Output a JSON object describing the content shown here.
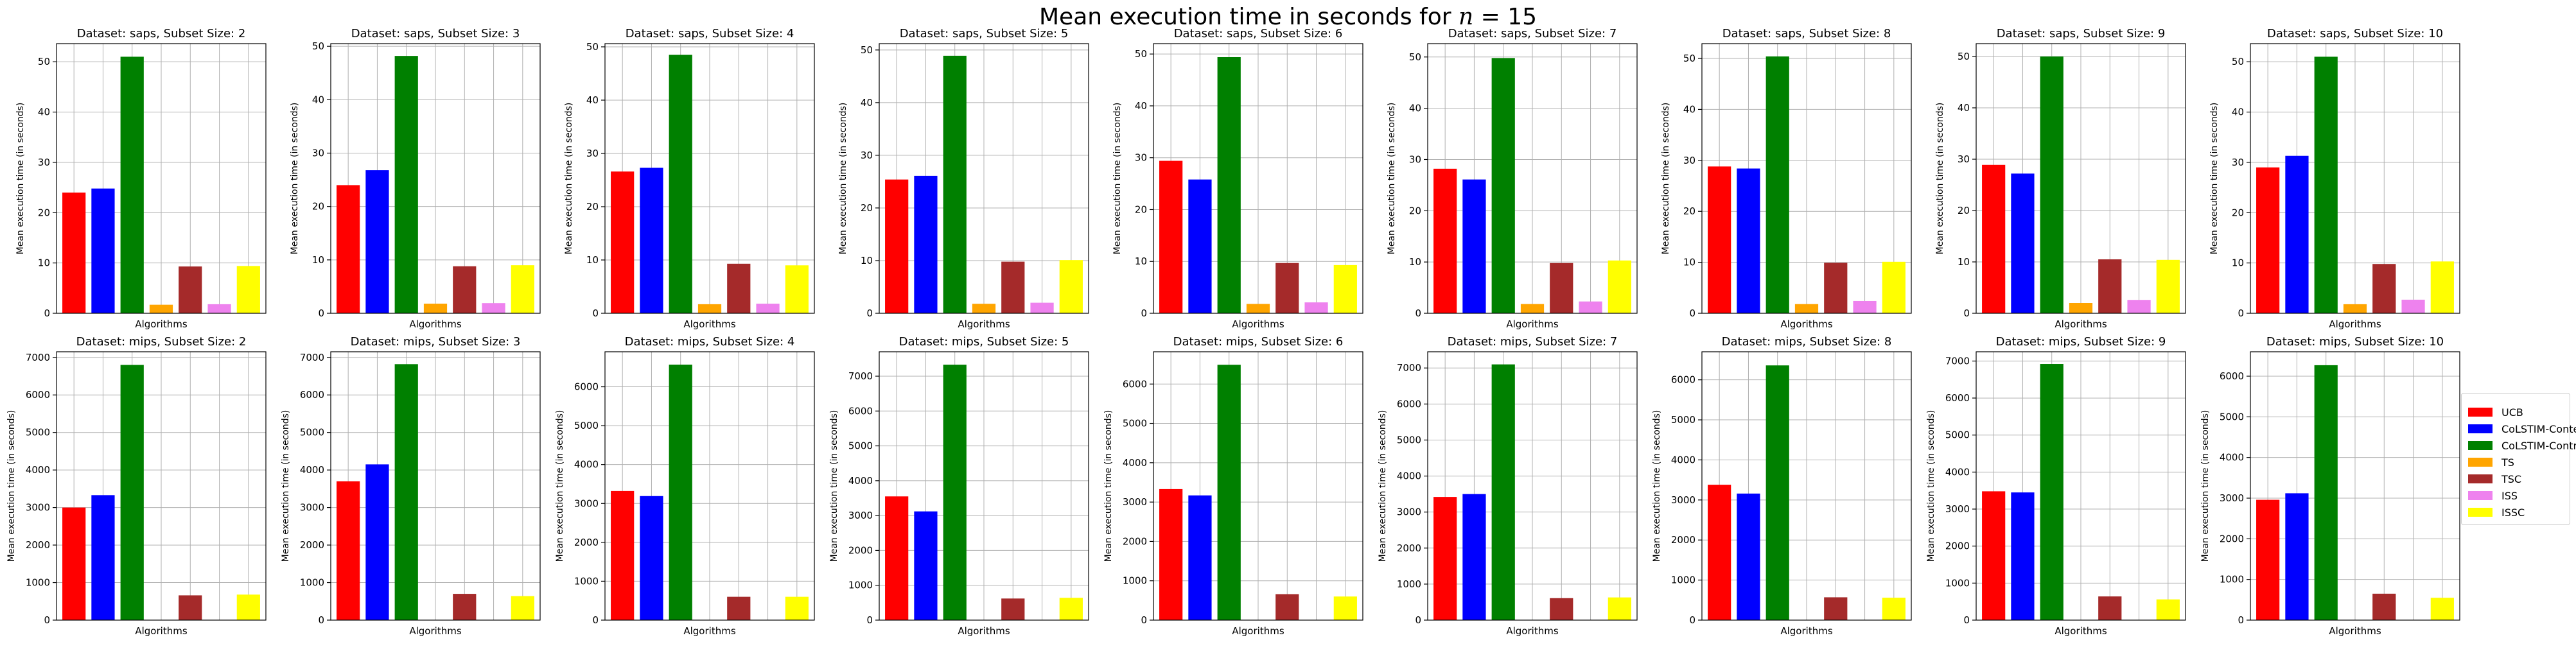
{
  "figure": {
    "title_prefix": "Mean execution time in seconds for ",
    "title_var": "n",
    "title_suffix": " = 15"
  },
  "legend": {
    "placement": "right",
    "items": [
      {
        "label": "UCB",
        "color": "#ff0000"
      },
      {
        "label": "CoLSTIM-Context",
        "color": "#0000ff"
      },
      {
        "label": "CoLSTIM-Contrast",
        "color": "#008000"
      },
      {
        "label": "TS",
        "color": "#ffa500"
      },
      {
        "label": "TSC",
        "color": "#a52a2a"
      },
      {
        "label": "ISS",
        "color": "#ee82ee"
      },
      {
        "label": "ISSC",
        "color": "#ffff00"
      }
    ]
  },
  "chart_data": [
    {
      "type": "bar",
      "title": "Dataset: saps, Subset Size: 2",
      "xlabel": "Algorithms",
      "ylabel": "Mean execution time (in seconds)",
      "ylim": [
        0,
        53.6
      ],
      "yticks": [
        0,
        10,
        20,
        30,
        40,
        50
      ],
      "grid": true,
      "categories": [
        "UCB",
        "CoLSTIM-Context",
        "CoLSTIM-Contrast",
        "TS",
        "TSC",
        "ISS",
        "ISSC"
      ],
      "values": [
        24.0,
        24.8,
        51.0,
        1.7,
        9.3,
        1.8,
        9.4
      ]
    },
    {
      "type": "bar",
      "title": "Dataset: saps, Subset Size: 3",
      "xlabel": "Algorithms",
      "ylabel": "Mean execution time (in seconds)",
      "ylim": [
        0,
        50.5
      ],
      "yticks": [
        0,
        10,
        20,
        30,
        40,
        50
      ],
      "grid": true,
      "categories": [
        "UCB",
        "CoLSTIM-Context",
        "CoLSTIM-Contrast",
        "TS",
        "TSC",
        "ISS",
        "ISSC"
      ],
      "values": [
        24.0,
        26.8,
        48.2,
        1.8,
        8.8,
        1.9,
        9.0
      ]
    },
    {
      "type": "bar",
      "title": "Dataset: saps, Subset Size: 4",
      "xlabel": "Algorithms",
      "ylabel": "Mean execution time (in seconds)",
      "ylim": [
        0,
        50.6
      ],
      "yticks": [
        0,
        10,
        20,
        30,
        40,
        50
      ],
      "grid": true,
      "categories": [
        "UCB",
        "CoLSTIM-Context",
        "CoLSTIM-Contrast",
        "TS",
        "TSC",
        "ISS",
        "ISSC"
      ],
      "values": [
        26.6,
        27.3,
        48.5,
        1.7,
        9.3,
        1.8,
        9.0
      ]
    },
    {
      "type": "bar",
      "title": "Dataset: saps, Subset Size: 5",
      "xlabel": "Algorithms",
      "ylabel": "Mean execution time (in seconds)",
      "ylim": [
        0,
        51.2
      ],
      "yticks": [
        0,
        10,
        20,
        30,
        40,
        50
      ],
      "grid": true,
      "categories": [
        "UCB",
        "CoLSTIM-Context",
        "CoLSTIM-Contrast",
        "TS",
        "TSC",
        "ISS",
        "ISSC"
      ],
      "values": [
        25.4,
        26.1,
        48.9,
        1.8,
        9.8,
        2.0,
        10.1
      ]
    },
    {
      "type": "bar",
      "title": "Dataset: saps, Subset Size: 6",
      "xlabel": "Algorithms",
      "ylabel": "Mean execution time (in seconds)",
      "ylim": [
        0,
        52.0
      ],
      "yticks": [
        0,
        10,
        20,
        30,
        40,
        50
      ],
      "grid": true,
      "categories": [
        "UCB",
        "CoLSTIM-Context",
        "CoLSTIM-Contrast",
        "TS",
        "TSC",
        "ISS",
        "ISSC"
      ],
      "values": [
        29.4,
        25.8,
        49.4,
        1.8,
        9.7,
        2.1,
        9.3
      ]
    },
    {
      "type": "bar",
      "title": "Dataset: saps, Subset Size: 7",
      "xlabel": "Algorithms",
      "ylabel": "Mean execution time (in seconds)",
      "ylim": [
        0,
        52.6
      ],
      "yticks": [
        0,
        10,
        20,
        30,
        40,
        50
      ],
      "grid": true,
      "categories": [
        "UCB",
        "CoLSTIM-Context",
        "CoLSTIM-Contrast",
        "TS",
        "TSC",
        "ISS",
        "ISSC"
      ],
      "values": [
        28.2,
        26.1,
        49.8,
        1.8,
        9.8,
        2.3,
        10.3
      ]
    },
    {
      "type": "bar",
      "title": "Dataset: saps, Subset Size: 8",
      "xlabel": "Algorithms",
      "ylabel": "Mean execution time (in seconds)",
      "ylim": [
        0,
        52.9
      ],
      "yticks": [
        0,
        10,
        20,
        30,
        40,
        50
      ],
      "grid": true,
      "categories": [
        "UCB",
        "CoLSTIM-Context",
        "CoLSTIM-Contrast",
        "TS",
        "TSC",
        "ISS",
        "ISSC"
      ],
      "values": [
        28.8,
        28.4,
        50.4,
        1.8,
        9.9,
        2.4,
        10.1
      ]
    },
    {
      "type": "bar",
      "title": "Dataset: saps, Subset Size: 9",
      "xlabel": "Algorithms",
      "ylabel": "Mean execution time (in seconds)",
      "ylim": [
        0,
        52.5
      ],
      "yticks": [
        0,
        10,
        20,
        30,
        40,
        50
      ],
      "grid": true,
      "categories": [
        "UCB",
        "CoLSTIM-Context",
        "CoLSTIM-Contrast",
        "TS",
        "TSC",
        "ISS",
        "ISSC"
      ],
      "values": [
        28.9,
        27.2,
        50.0,
        2.0,
        10.5,
        2.6,
        10.4
      ]
    },
    {
      "type": "bar",
      "title": "Dataset: saps, Subset Size: 10",
      "xlabel": "Algorithms",
      "ylabel": "Mean execution time (in seconds)",
      "ylim": [
        0,
        53.6
      ],
      "yticks": [
        0,
        10,
        20,
        30,
        40,
        50
      ],
      "grid": true,
      "categories": [
        "UCB",
        "CoLSTIM-Context",
        "CoLSTIM-Contrast",
        "TS",
        "TSC",
        "ISS",
        "ISSC"
      ],
      "values": [
        29.0,
        31.3,
        51.0,
        1.8,
        9.8,
        2.7,
        10.3
      ]
    },
    {
      "type": "bar",
      "title": "Dataset: mips, Subset Size: 2",
      "xlabel": "Algorithms",
      "ylabel": "Mean execution time (in seconds)",
      "ylim": [
        0,
        7150
      ],
      "yticks": [
        0,
        1000,
        2000,
        3000,
        4000,
        5000,
        6000,
        7000
      ],
      "grid": true,
      "categories": [
        "UCB",
        "CoLSTIM-Context",
        "CoLSTIM-Contrast",
        "TS",
        "TSC",
        "ISS",
        "ISSC"
      ],
      "values": [
        3000,
        3330,
        6800,
        0,
        660,
        0,
        680
      ]
    },
    {
      "type": "bar",
      "title": "Dataset: mips, Subset Size: 3",
      "xlabel": "Algorithms",
      "ylabel": "Mean execution time (in seconds)",
      "ylim": [
        0,
        7150
      ],
      "yticks": [
        0,
        1000,
        2000,
        3000,
        4000,
        5000,
        6000,
        7000
      ],
      "grid": true,
      "categories": [
        "UCB",
        "CoLSTIM-Context",
        "CoLSTIM-Contrast",
        "TS",
        "TSC",
        "ISS",
        "ISSC"
      ],
      "values": [
        3700,
        4150,
        6820,
        0,
        700,
        0,
        640
      ]
    },
    {
      "type": "bar",
      "title": "Dataset: mips, Subset Size: 4",
      "xlabel": "Algorithms",
      "ylabel": "Mean execution time (in seconds)",
      "ylim": [
        0,
        6900
      ],
      "yticks": [
        0,
        1000,
        2000,
        3000,
        4000,
        5000,
        6000
      ],
      "grid": true,
      "categories": [
        "UCB",
        "CoLSTIM-Context",
        "CoLSTIM-Contrast",
        "TS",
        "TSC",
        "ISS",
        "ISSC"
      ],
      "values": [
        3320,
        3190,
        6570,
        0,
        600,
        0,
        600
      ]
    },
    {
      "type": "bar",
      "title": "Dataset: mips, Subset Size: 5",
      "xlabel": "Algorithms",
      "ylabel": "Mean execution time (in seconds)",
      "ylim": [
        0,
        7700
      ],
      "yticks": [
        0,
        1000,
        2000,
        3000,
        4000,
        5000,
        6000,
        7000
      ],
      "grid": true,
      "categories": [
        "UCB",
        "CoLSTIM-Context",
        "CoLSTIM-Contrast",
        "TS",
        "TSC",
        "ISS",
        "ISSC"
      ],
      "values": [
        3550,
        3120,
        7330,
        0,
        620,
        0,
        640
      ]
    },
    {
      "type": "bar",
      "title": "Dataset: mips, Subset Size: 6",
      "xlabel": "Algorithms",
      "ylabel": "Mean execution time (in seconds)",
      "ylim": [
        0,
        6820
      ],
      "yticks": [
        0,
        1000,
        2000,
        3000,
        4000,
        5000,
        6000
      ],
      "grid": true,
      "categories": [
        "UCB",
        "CoLSTIM-Context",
        "CoLSTIM-Contrast",
        "TS",
        "TSC",
        "ISS",
        "ISSC"
      ],
      "values": [
        3330,
        3170,
        6490,
        0,
        660,
        0,
        600
      ]
    },
    {
      "type": "bar",
      "title": "Dataset: mips, Subset Size: 7",
      "xlabel": "Algorithms",
      "ylabel": "Mean execution time (in seconds)",
      "ylim": [
        0,
        7450
      ],
      "yticks": [
        0,
        1000,
        2000,
        3000,
        4000,
        5000,
        6000,
        7000
      ],
      "grid": true,
      "categories": [
        "UCB",
        "CoLSTIM-Context",
        "CoLSTIM-Contrast",
        "TS",
        "TSC",
        "ISS",
        "ISSC"
      ],
      "values": [
        3420,
        3500,
        7100,
        0,
        610,
        0,
        630
      ]
    },
    {
      "type": "bar",
      "title": "Dataset: mips, Subset Size: 8",
      "xlabel": "Algorithms",
      "ylabel": "Mean execution time (in seconds)",
      "ylim": [
        0,
        6700
      ],
      "yticks": [
        0,
        1000,
        2000,
        3000,
        4000,
        5000,
        6000
      ],
      "grid": true,
      "categories": [
        "UCB",
        "CoLSTIM-Context",
        "CoLSTIM-Contrast",
        "TS",
        "TSC",
        "ISS",
        "ISSC"
      ],
      "values": [
        3380,
        3160,
        6360,
        0,
        570,
        0,
        560
      ]
    },
    {
      "type": "bar",
      "title": "Dataset: mips, Subset Size: 9",
      "xlabel": "Algorithms",
      "ylabel": "Mean execution time (in seconds)",
      "ylim": [
        0,
        7250
      ],
      "yticks": [
        0,
        1000,
        2000,
        3000,
        4000,
        5000,
        6000,
        7000
      ],
      "grid": true,
      "categories": [
        "UCB",
        "CoLSTIM-Context",
        "CoLSTIM-Contrast",
        "TS",
        "TSC",
        "ISS",
        "ISSC"
      ],
      "values": [
        3480,
        3450,
        6920,
        0,
        640,
        0,
        560
      ]
    },
    {
      "type": "bar",
      "title": "Dataset: mips, Subset Size: 10",
      "xlabel": "Algorithms",
      "ylabel": "Mean execution time (in seconds)",
      "ylim": [
        0,
        6600
      ],
      "yticks": [
        0,
        1000,
        2000,
        3000,
        4000,
        5000,
        6000
      ],
      "grid": true,
      "categories": [
        "UCB",
        "CoLSTIM-Context",
        "CoLSTIM-Contrast",
        "TS",
        "TSC",
        "ISS",
        "ISSC"
      ],
      "values": [
        2960,
        3120,
        6270,
        0,
        650,
        0,
        550
      ]
    }
  ]
}
